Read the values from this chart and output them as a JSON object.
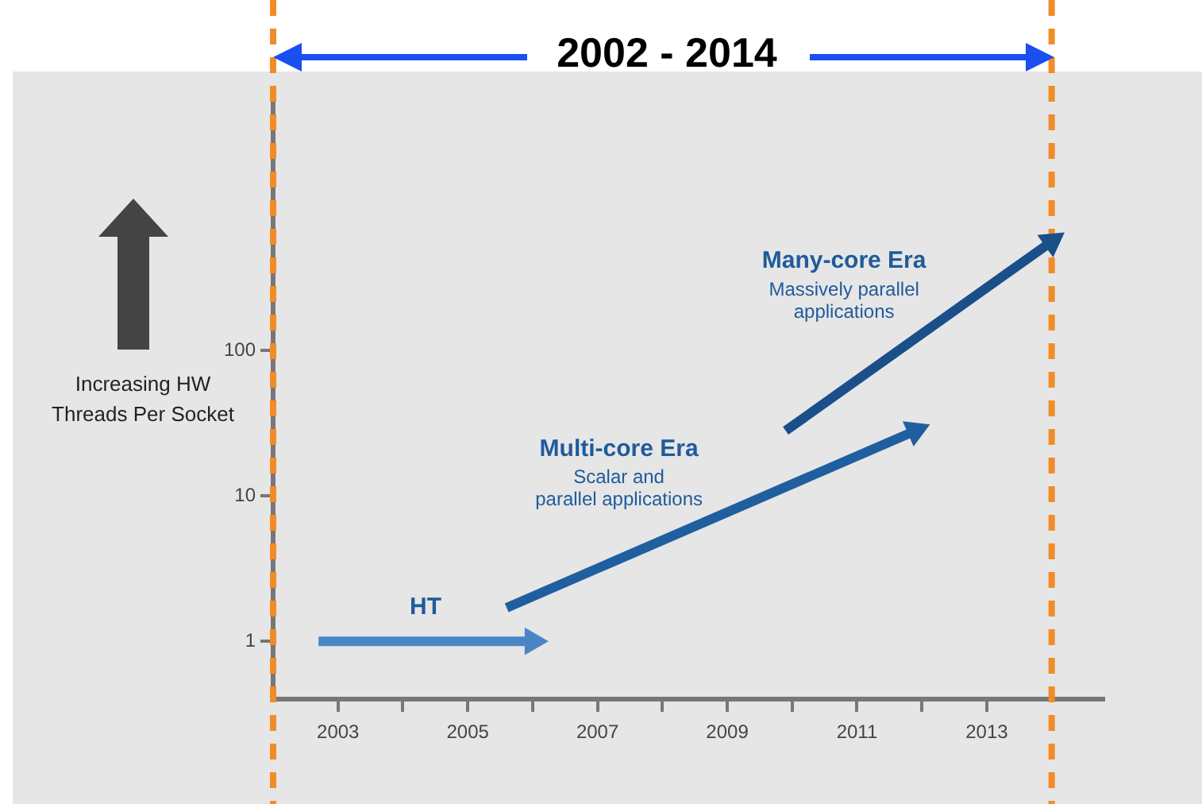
{
  "chart_data": {
    "type": "line",
    "title": "2002 - 2014",
    "ylabel": "Increasing HW Threads Per Socket",
    "log": "y",
    "xlim": [
      2002,
      2014.8
    ],
    "xticks": [
      2003,
      {
        "value": 2004,
        "label": null
      },
      2005,
      {
        "value": 2006,
        "label": null
      },
      2007,
      {
        "value": 2008,
        "label": null
      },
      2009,
      {
        "value": 2010,
        "label": null
      },
      2011,
      {
        "value": 2012,
        "label": null
      },
      2013
    ],
    "ylim": [
      0.4,
      5000
    ],
    "yticks": [
      1,
      10,
      100
    ],
    "grid": false,
    "legend": false,
    "marker": "triangle",
    "line_style": "solid",
    "series": [
      {
        "name": "HT",
        "color": "#4a86c5",
        "x": [
          2002.7,
          2006.0
        ],
        "values": [
          1,
          1
        ]
      },
      {
        "name": "Multi-core Era",
        "color": "#1f5fa0",
        "x": [
          2005.6,
          2011.9
        ],
        "values": [
          1.7,
          28
        ]
      },
      {
        "name": "Many-core Era",
        "color": "#1a4f8a",
        "x": [
          2009.9,
          2014.0
        ],
        "values": [
          28,
          560
        ]
      }
    ],
    "ref_lines": [
      {
        "axis": "x",
        "value": 2002,
        "color": "#f28c28",
        "line_style": "dashed"
      },
      {
        "axis": "x",
        "value": 2014,
        "color": "#f28c28",
        "line_style": "dashed"
      }
    ],
    "annotations": [
      "Scalar and\nparallel applications",
      "Massively parallel\napplications"
    ]
  }
}
